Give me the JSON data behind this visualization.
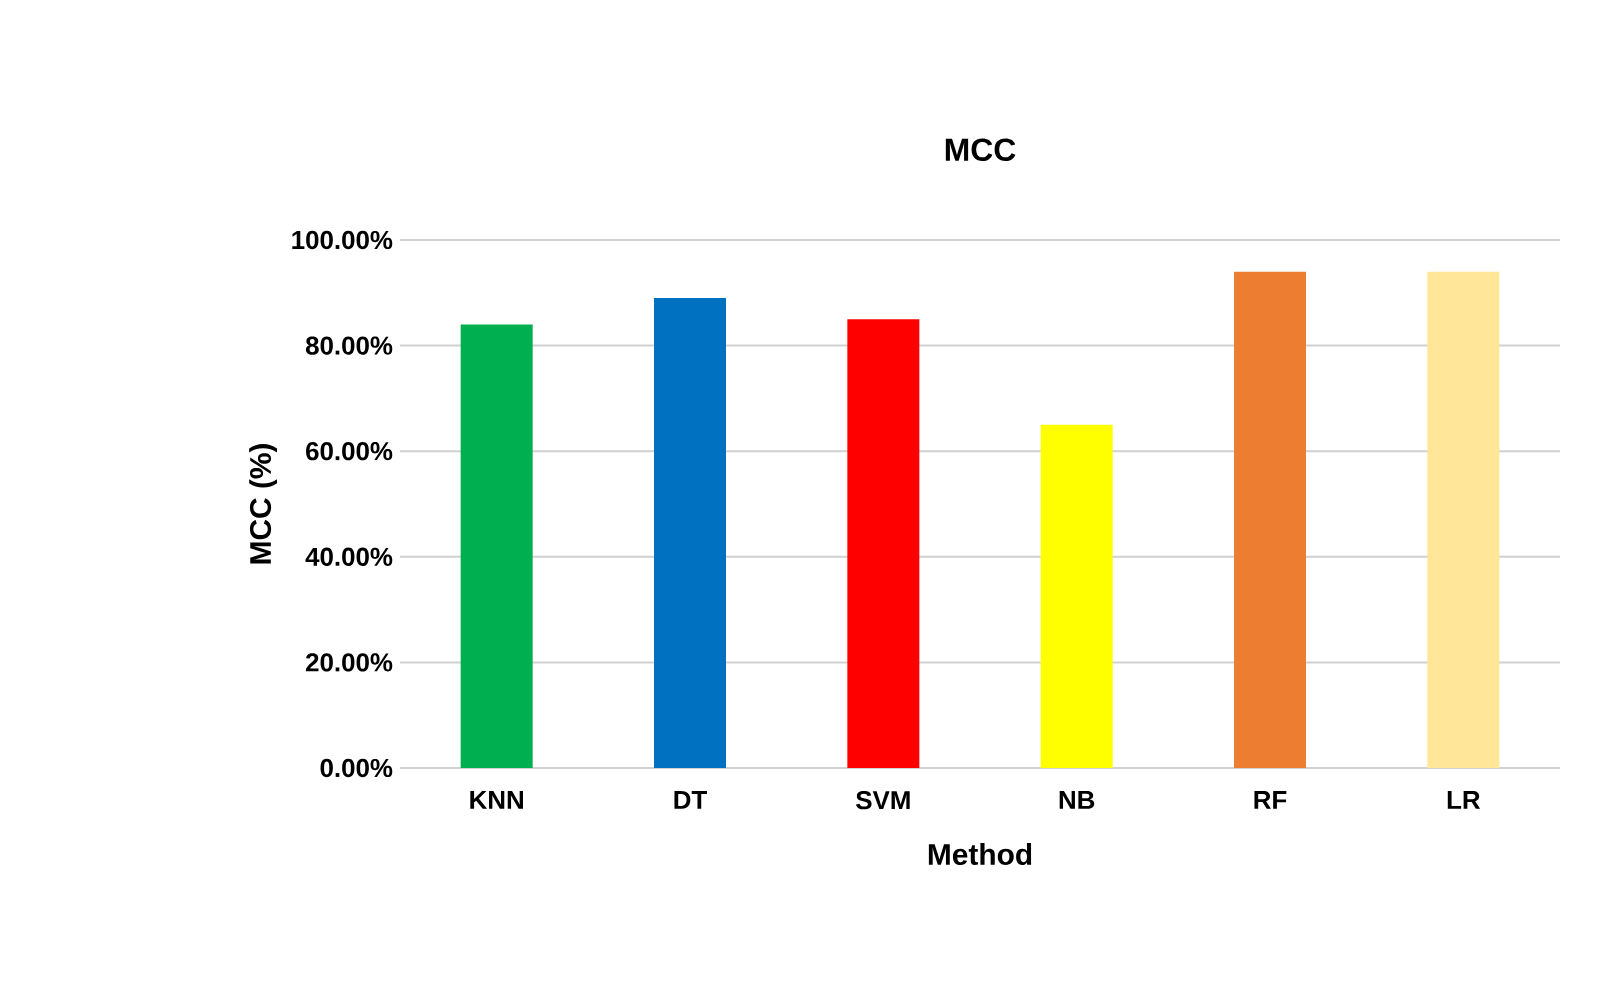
{
  "chart_data": {
    "type": "bar",
    "title": "MCC",
    "xlabel": "Method",
    "ylabel": "MCC (%)",
    "categories": [
      "KNN",
      "DT",
      "SVM",
      "NB",
      "RF",
      "LR"
    ],
    "values": [
      84,
      89,
      85,
      65,
      94,
      94
    ],
    "colors": [
      "#00b050",
      "#0070c0",
      "#ff0000",
      "#ffff00",
      "#ed7d31",
      "#ffe699"
    ],
    "ylim": [
      0,
      100
    ],
    "yticks": [
      {
        "value": 0,
        "label": "0.00%"
      },
      {
        "value": 20,
        "label": "20.00%"
      },
      {
        "value": 40,
        "label": "40.00%"
      },
      {
        "value": 60,
        "label": "60.00%"
      },
      {
        "value": 80,
        "label": "80.00%"
      },
      {
        "value": 100,
        "label": "100.00%"
      }
    ],
    "grid": "y"
  }
}
